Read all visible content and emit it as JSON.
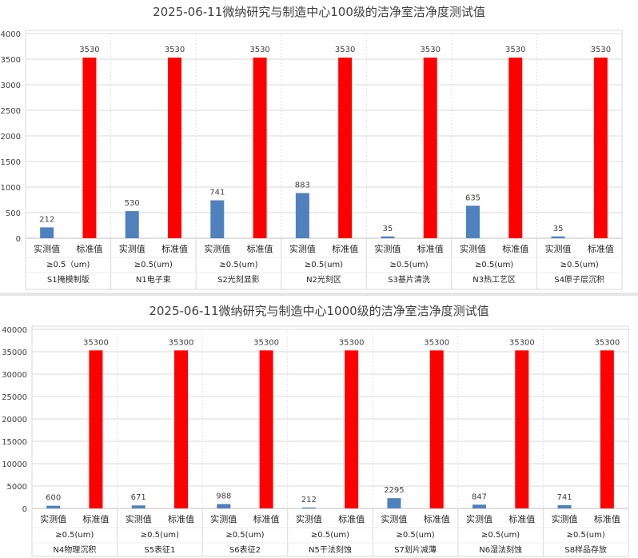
{
  "chart_data": [
    {
      "type": "bar",
      "title": "2025-06-11微纳研究与制造中心100级的洁净室洁净度测试值",
      "ylim": [
        0,
        4000
      ],
      "yticks": [
        0,
        500,
        1000,
        1500,
        2000,
        2500,
        3000,
        3500,
        4000
      ],
      "grid": true,
      "series_labels": [
        "实测值",
        "标准值"
      ],
      "colors": [
        "#4f81bd",
        "#ff0000"
      ],
      "groups": [
        {
          "particle": "≥0.5（um)",
          "location": "S1掩模制版",
          "measured": 212,
          "standard": 3530
        },
        {
          "particle": "≥0.5(um)",
          "location": "N1电子束",
          "measured": 530,
          "standard": 3530
        },
        {
          "particle": "≥0.5(um)",
          "location": "S2光刻显影",
          "measured": 741,
          "standard": 3530
        },
        {
          "particle": "≥0.5(um)",
          "location": "N2光刻区",
          "measured": 883,
          "standard": 3530
        },
        {
          "particle": "≥0.5(um)",
          "location": "S3基片清洗",
          "measured": 35,
          "standard": 3530
        },
        {
          "particle": "≥0.5(um)",
          "location": "N3热工艺区",
          "measured": 635,
          "standard": 3530
        },
        {
          "particle": "≥0.5(um)",
          "location": "S4原子层沉积",
          "measured": 35,
          "standard": 3530
        }
      ]
    },
    {
      "type": "bar",
      "title": "2025-06-11微纳研究与制造中心1000级的洁净室洁净度测试值",
      "ylim": [
        0,
        40000
      ],
      "yticks": [
        0,
        5000,
        10000,
        15000,
        20000,
        25000,
        30000,
        35000,
        40000
      ],
      "grid": true,
      "series_labels": [
        "实测值",
        "标准值"
      ],
      "colors": [
        "#4f81bd",
        "#ff0000"
      ],
      "groups": [
        {
          "particle": "≥0.5(um)",
          "location": "N4物理沉积",
          "measured": 600,
          "standard": 35300
        },
        {
          "particle": "≥0.5(um)",
          "location": "S5表征1",
          "measured": 671,
          "standard": 35300
        },
        {
          "particle": "≥0.5(um)",
          "location": "S6表征2",
          "measured": 988,
          "standard": 35300
        },
        {
          "particle": "≥0.5(um)",
          "location": "N5干法刻蚀",
          "measured": 212,
          "standard": 35300
        },
        {
          "particle": "≥0.5(um)",
          "location": "S7划片减薄",
          "measured": 2295,
          "standard": 35300
        },
        {
          "particle": "≥0.5(um)",
          "location": "N6湿法刻蚀",
          "measured": 847,
          "standard": 35300
        },
        {
          "particle": "≥0.5(um)",
          "location": "S8样品存放",
          "measured": 741,
          "standard": 35300
        }
      ]
    }
  ]
}
